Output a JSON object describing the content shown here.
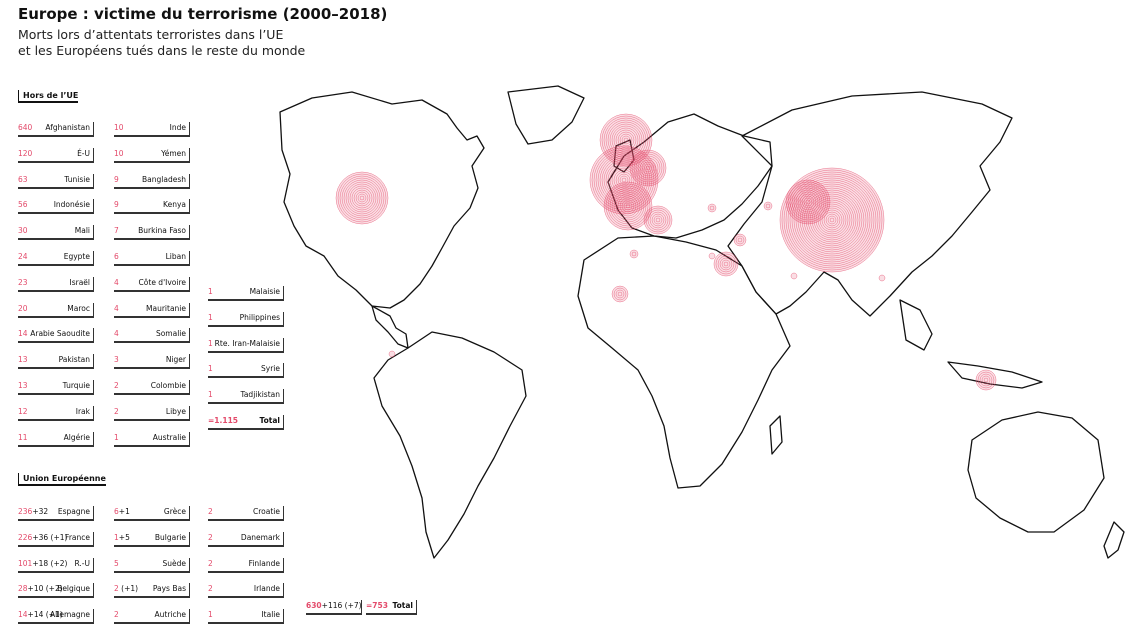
{
  "title": "Europe : victime du terrorisme (2000–2018)",
  "subtitle": [
    "Morts lors d’attentats terroristes dans l’UE",
    "et les Européens tués dans le reste du monde"
  ],
  "colors": {
    "accent": "#e34a6a",
    "ink": "#111111"
  },
  "outside_eu": {
    "heading": "Hors de l’UE",
    "columns": [
      [
        {
          "value": "640",
          "name": "Afghanistan"
        },
        {
          "value": "120",
          "name": "É-U"
        },
        {
          "value": "63",
          "name": "Tunisie"
        },
        {
          "value": "56",
          "name": "Indonésie"
        },
        {
          "value": "30",
          "name": "Mali"
        },
        {
          "value": "24",
          "name": "Egypte"
        },
        {
          "value": "23",
          "name": "Israël"
        },
        {
          "value": "20",
          "name": "Maroc"
        },
        {
          "value": "14",
          "name": "Arabie Saoudite"
        },
        {
          "value": "13",
          "name": "Pakistan"
        },
        {
          "value": "13",
          "name": "Turquie"
        },
        {
          "value": "12",
          "name": "Irak"
        },
        {
          "value": "11",
          "name": "Algérie"
        }
      ],
      [
        {
          "value": "10",
          "name": "Inde"
        },
        {
          "value": "10",
          "name": "Yémen"
        },
        {
          "value": "9",
          "name": "Bangladesh"
        },
        {
          "value": "9",
          "name": "Kenya"
        },
        {
          "value": "7",
          "name": "Burkina Faso"
        },
        {
          "value": "6",
          "name": "Liban"
        },
        {
          "value": "4",
          "name": "Côte d'Ivoire"
        },
        {
          "value": "4",
          "name": "Mauritanie"
        },
        {
          "value": "4",
          "name": "Somalie"
        },
        {
          "value": "3",
          "name": "Niger"
        },
        {
          "value": "2",
          "name": "Colombie"
        },
        {
          "value": "2",
          "name": "Libye"
        },
        {
          "value": "1",
          "name": "Australie"
        }
      ],
      [
        {
          "value": "1",
          "name": "Malaisie"
        },
        {
          "value": "1",
          "name": "Philippines"
        },
        {
          "value": "1",
          "name": "Rte. Iran-Malaisie"
        },
        {
          "value": "1",
          "name": "Syrie"
        },
        {
          "value": "1",
          "name": "Tadjikistan"
        },
        {
          "value": "=1.115",
          "name": "Total",
          "total": true
        }
      ]
    ]
  },
  "eu": {
    "heading": "Union Européenne",
    "columns": [
      [
        {
          "value": "236",
          "extra": "+32",
          "name": "Espagne"
        },
        {
          "value": "226",
          "extra": "+36 (+1)",
          "name": "France"
        },
        {
          "value": "101",
          "extra": "+18 (+2)",
          "name": "R.-U"
        },
        {
          "value": "28",
          "extra": "+10 (+2)",
          "name": "Belgique"
        },
        {
          "value": "14",
          "extra": "+14 (+1)",
          "name": "Allemagne"
        }
      ],
      [
        {
          "value": "6",
          "extra": "+1",
          "name": "Grèce"
        },
        {
          "value": "1",
          "extra": "+5",
          "name": "Bulgarie"
        },
        {
          "value": "5",
          "extra": "",
          "name": "Suède"
        },
        {
          "value": "2",
          "extra": " (+1)",
          "name": "Pays Bas"
        },
        {
          "value": "2",
          "extra": "",
          "name": "Autriche"
        }
      ],
      [
        {
          "value": "2",
          "extra": "",
          "name": "Croatie"
        },
        {
          "value": "2",
          "extra": "",
          "name": "Danemark"
        },
        {
          "value": "2",
          "extra": "",
          "name": "Finlande"
        },
        {
          "value": "2",
          "extra": "",
          "name": "Irlande"
        },
        {
          "value": "1",
          "extra": "",
          "name": "Italie"
        }
      ],
      [
        {
          "value": "630",
          "extra": "+116 (+7)",
          "name": "",
          "total": true
        },
        {
          "value": "=753",
          "extra": "",
          "name": "Total",
          "total": true
        }
      ]
    ]
  }
}
